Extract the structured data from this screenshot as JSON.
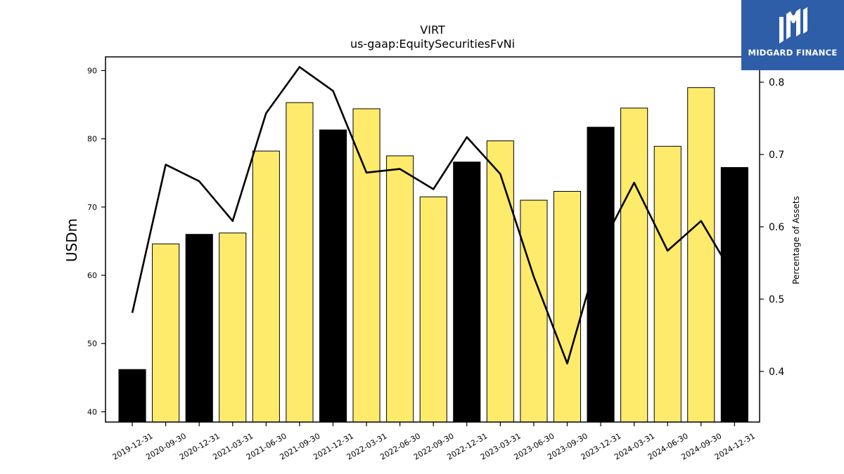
{
  "chart_data": {
    "type": "bar",
    "title": "VIRT",
    "subtitle": "us-gaap:EquitySecuritiesFvNi",
    "ylabel": "USDm",
    "y2label": "Percentage of Assets",
    "ylim": [
      38.5,
      92
    ],
    "y2lim": [
      0.33,
      0.835
    ],
    "yticks": [
      40,
      50,
      60,
      70,
      80,
      90
    ],
    "y2ticks": [
      0.4,
      0.5,
      0.6,
      0.7,
      0.8
    ],
    "categories": [
      "2019-12-31",
      "2020-09-30",
      "2020-12-31",
      "2021-03-31",
      "2021-06-30",
      "2021-09-30",
      "2021-12-31",
      "2022-03-31",
      "2022-06-30",
      "2022-09-30",
      "2022-12-31",
      "2023-03-31",
      "2023-06-30",
      "2023-09-30",
      "2023-12-31",
      "2024-03-31",
      "2024-06-30",
      "2024-09-30",
      "2024-12-31"
    ],
    "series": [
      {
        "type": "bar",
        "axis": "left",
        "values": [
          46.2,
          64.6,
          66.0,
          66.2,
          78.2,
          85.3,
          81.3,
          84.4,
          77.5,
          71.5,
          76.6,
          79.7,
          71.0,
          72.3,
          81.7,
          84.5,
          78.9,
          87.5,
          75.8
        ],
        "colors": [
          "#000000",
          "#ffeb6b",
          "#000000",
          "#ffeb6b",
          "#ffeb6b",
          "#ffeb6b",
          "#000000",
          "#ffeb6b",
          "#ffeb6b",
          "#ffeb6b",
          "#000000",
          "#ffeb6b",
          "#ffeb6b",
          "#ffeb6b",
          "#000000",
          "#ffeb6b",
          "#ffeb6b",
          "#ffeb6b",
          "#000000"
        ]
      },
      {
        "type": "line",
        "axis": "right",
        "values": [
          0.481,
          0.686,
          0.663,
          0.608,
          0.757,
          0.821,
          0.788,
          0.675,
          0.68,
          0.652,
          0.724,
          0.673,
          0.531,
          0.411,
          0.572,
          0.661,
          0.567,
          0.608,
          0.53
        ],
        "color": "#000000"
      }
    ],
    "grid": false,
    "legend": "none"
  },
  "logo": {
    "text": "MIDGARD FINANCE"
  }
}
